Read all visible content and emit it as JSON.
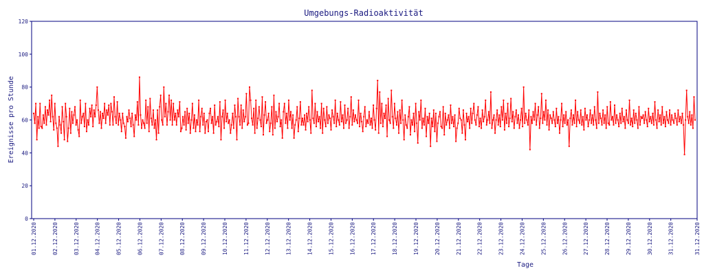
{
  "chart_data": {
    "type": "line",
    "title": "Umgebungs-Radioaktivität",
    "xlabel": "Tage",
    "ylabel": "Ereignisse pro Stunde",
    "ylim": [
      0,
      120
    ],
    "yticks": [
      0,
      20,
      40,
      60,
      80,
      100,
      120
    ],
    "xticks": [
      "01.12.2020",
      "02.12.2020",
      "03.12.2020",
      "04.12.2020",
      "05.12.2020",
      "06.12.2020",
      "07.12.2020",
      "08.12.2020",
      "09.12.2020",
      "10.12.2020",
      "11.12.2020",
      "12.12.2020",
      "13.12.2020",
      "14.12.2020",
      "15.12.2020",
      "16.12.2020",
      "17.12.2020",
      "18.12.2020",
      "19.12.2020",
      "20.12.2020",
      "21.12.2020",
      "22.12.2020",
      "23.12.2020",
      "24.12.2020",
      "25.12.2020",
      "26.12.2020",
      "27.12.2020",
      "28.12.2020",
      "29.12.2020",
      "30.12.2020",
      "31.12.2020",
      "31.12.2020"
    ],
    "grid": false,
    "colors": {
      "series": "#ff0000",
      "axis": "#00007f",
      "text": "#1a1a80"
    },
    "series": [
      {
        "values": [
          64,
          58,
          70,
          48,
          62,
          55,
          70,
          56,
          55,
          63,
          58,
          68,
          57,
          66,
          63,
          72,
          59,
          75,
          62,
          54,
          70,
          58,
          55,
          44,
          62,
          57,
          52,
          68,
          59,
          48,
          70,
          62,
          47,
          55,
          67,
          52,
          65,
          58,
          63,
          68,
          57,
          60,
          54,
          50,
          72,
          58,
          62,
          64,
          56,
          70,
          53,
          60,
          57,
          67,
          62,
          69,
          56,
          66,
          62,
          69,
          80,
          66,
          58,
          65,
          55,
          64,
          61,
          70,
          58,
          66,
          63,
          69,
          57,
          70,
          65,
          57,
          74,
          62,
          58,
          71,
          57,
          64,
          60,
          53,
          64,
          58,
          56,
          49,
          62,
          59,
          66,
          61,
          56,
          64,
          57,
          50,
          63,
          60,
          71,
          57,
          86,
          63,
          55,
          60,
          58,
          55,
          72,
          58,
          68,
          53,
          73,
          61,
          57,
          66,
          55,
          60,
          48,
          66,
          52,
          68,
          75,
          60,
          57,
          80,
          62,
          70,
          57,
          65,
          75,
          60,
          72,
          57,
          70,
          60,
          64,
          57,
          66,
          62,
          71,
          53,
          55,
          62,
          57,
          65,
          54,
          67,
          58,
          64,
          52,
          60,
          70,
          55,
          63,
          53,
          60,
          57,
          72,
          53,
          62,
          67,
          57,
          64,
          52,
          59,
          60,
          53,
          64,
          67,
          58,
          62,
          52,
          69,
          57,
          59,
          62,
          56,
          71,
          48,
          62,
          66,
          55,
          72,
          59,
          64,
          58,
          60,
          52,
          57,
          64,
          55,
          69,
          62,
          48,
          73,
          62,
          57,
          69,
          55,
          66,
          59,
          62,
          76,
          57,
          58,
          80,
          72,
          61,
          57,
          67,
          52,
          72,
          55,
          61,
          68,
          60,
          56,
          74,
          51,
          63,
          71,
          58,
          60,
          64,
          53,
          58,
          68,
          51,
          75,
          55,
          65,
          59,
          62,
          70,
          56,
          60,
          49,
          65,
          70,
          58,
          64,
          55,
          72,
          60,
          65,
          55,
          63,
          49,
          57,
          60,
          68,
          53,
          61,
          71,
          57,
          61,
          57,
          63,
          54,
          64,
          59,
          68,
          60,
          52,
          78,
          61,
          58,
          70,
          56,
          65,
          59,
          62,
          55,
          70,
          52,
          67,
          60,
          56,
          68,
          58,
          63,
          61,
          54,
          66,
          62,
          58,
          72,
          56,
          64,
          60,
          57,
          71,
          59,
          63,
          55,
          69,
          58,
          60,
          67,
          55,
          62,
          74,
          57,
          66,
          59,
          63,
          60,
          58,
          72,
          56,
          64,
          59,
          53,
          62,
          68,
          56,
          60,
          58,
          65,
          57,
          61,
          55,
          69,
          60,
          54,
          67,
          84,
          52,
          77,
          58,
          70,
          56,
          64,
          61,
          69,
          50,
          73,
          60,
          58,
          78,
          62,
          55,
          70,
          61,
          57,
          65,
          52,
          66,
          58,
          72,
          60,
          48,
          63,
          57,
          55,
          62,
          68,
          51,
          60,
          57,
          64,
          53,
          70,
          58,
          46,
          65,
          60,
          72,
          55,
          61,
          57,
          67,
          50,
          62,
          58,
          64,
          44,
          61,
          56,
          66,
          53,
          64,
          47,
          58,
          62,
          65,
          56,
          55,
          68,
          51,
          64,
          57,
          60,
          63,
          55,
          69,
          58,
          62,
          56,
          63,
          47,
          55,
          58,
          67,
          61,
          60,
          52,
          66,
          57,
          48,
          64,
          59,
          62,
          55,
          67,
          58,
          64,
          70,
          60,
          57,
          63,
          68,
          56,
          61,
          55,
          66,
          59,
          62,
          72,
          57,
          60,
          65,
          58,
          77,
          55,
          60,
          63,
          52,
          60,
          66,
          57,
          63,
          56,
          68,
          60,
          72,
          54,
          64,
          58,
          70,
          56,
          61,
          73,
          59,
          65,
          55,
          62,
          66,
          58,
          63,
          55,
          60,
          67,
          56,
          80,
          58,
          64,
          60,
          57,
          66,
          42,
          62,
          58,
          65,
          60,
          70,
          57,
          63,
          68,
          55,
          61,
          76,
          58,
          65,
          60,
          72,
          57,
          66,
          54,
          63,
          61,
          58,
          65,
          60,
          56,
          67,
          58,
          62,
          52,
          60,
          70,
          56,
          63,
          58,
          65,
          57,
          60,
          44,
          61,
          66,
          57,
          63,
          58,
          72,
          56,
          65,
          60,
          58,
          66,
          57,
          62,
          54,
          67,
          60,
          63,
          56,
          60,
          66,
          58,
          63,
          57,
          68,
          60,
          55,
          77,
          58,
          64,
          61,
          57,
          66,
          58,
          63,
          55,
          68,
          58,
          57,
          71,
          60,
          62,
          57,
          69,
          58,
          63,
          60,
          56,
          64,
          58,
          67,
          59,
          62,
          55,
          66,
          60,
          58,
          72,
          57,
          61,
          56,
          66,
          58,
          64,
          60,
          55,
          68,
          57,
          62,
          61,
          63,
          58,
          65,
          60,
          56,
          67,
          59,
          62,
          58,
          64,
          57,
          71,
          60,
          55,
          66,
          59,
          63,
          57,
          68,
          58,
          62,
          56,
          65,
          60,
          58,
          66,
          57,
          63,
          60,
          58,
          64,
          61,
          57,
          66,
          59,
          62,
          58,
          64,
          57,
          39,
          60,
          78,
          62,
          58,
          65,
          57,
          63,
          55,
          74,
          60
        ]
      }
    ]
  }
}
